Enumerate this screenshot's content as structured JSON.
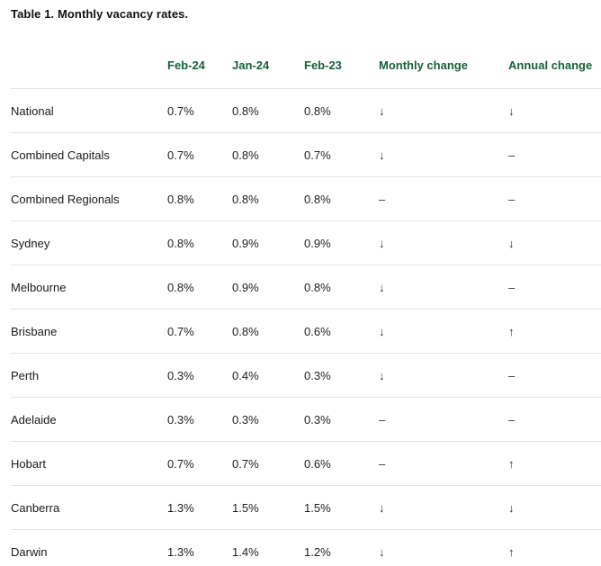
{
  "title": "Table 1. Monthly vacancy rates.",
  "colors": {
    "header_text": "#17603b",
    "row_border": "#e4e4e4",
    "body_text": "#1f1f1f"
  },
  "chart_data": {
    "type": "table",
    "columns": [
      "",
      "Feb-24",
      "Jan-24",
      "Feb-23",
      "Monthly change",
      "Annual change"
    ],
    "rows": [
      [
        "National",
        "0.7%",
        "0.8%",
        "0.8%",
        "↓",
        "↓"
      ],
      [
        "Combined Capitals",
        "0.7%",
        "0.8%",
        "0.7%",
        "↓",
        "–"
      ],
      [
        "Combined Regionals",
        "0.8%",
        "0.8%",
        "0.8%",
        "–",
        "–"
      ],
      [
        "Sydney",
        "0.8%",
        "0.9%",
        "0.9%",
        "↓",
        "↓"
      ],
      [
        "Melbourne",
        "0.8%",
        "0.9%",
        "0.8%",
        "↓",
        "–"
      ],
      [
        "Brisbane",
        "0.7%",
        "0.8%",
        "0.6%",
        "↓",
        "↑"
      ],
      [
        "Perth",
        "0.3%",
        "0.4%",
        "0.3%",
        "↓",
        "–"
      ],
      [
        "Adelaide",
        "0.3%",
        "0.3%",
        "0.3%",
        "–",
        "–"
      ],
      [
        "Hobart",
        "0.7%",
        "0.7%",
        "0.6%",
        "–",
        "↑"
      ],
      [
        "Canberra",
        "1.3%",
        "1.5%",
        "1.5%",
        "↓",
        "↓"
      ],
      [
        "Darwin",
        "1.3%",
        "1.4%",
        "1.2%",
        "↓",
        "↑"
      ]
    ],
    "indicator_legend": {
      "down": "↓",
      "up": "↑",
      "no_change": "–"
    }
  }
}
